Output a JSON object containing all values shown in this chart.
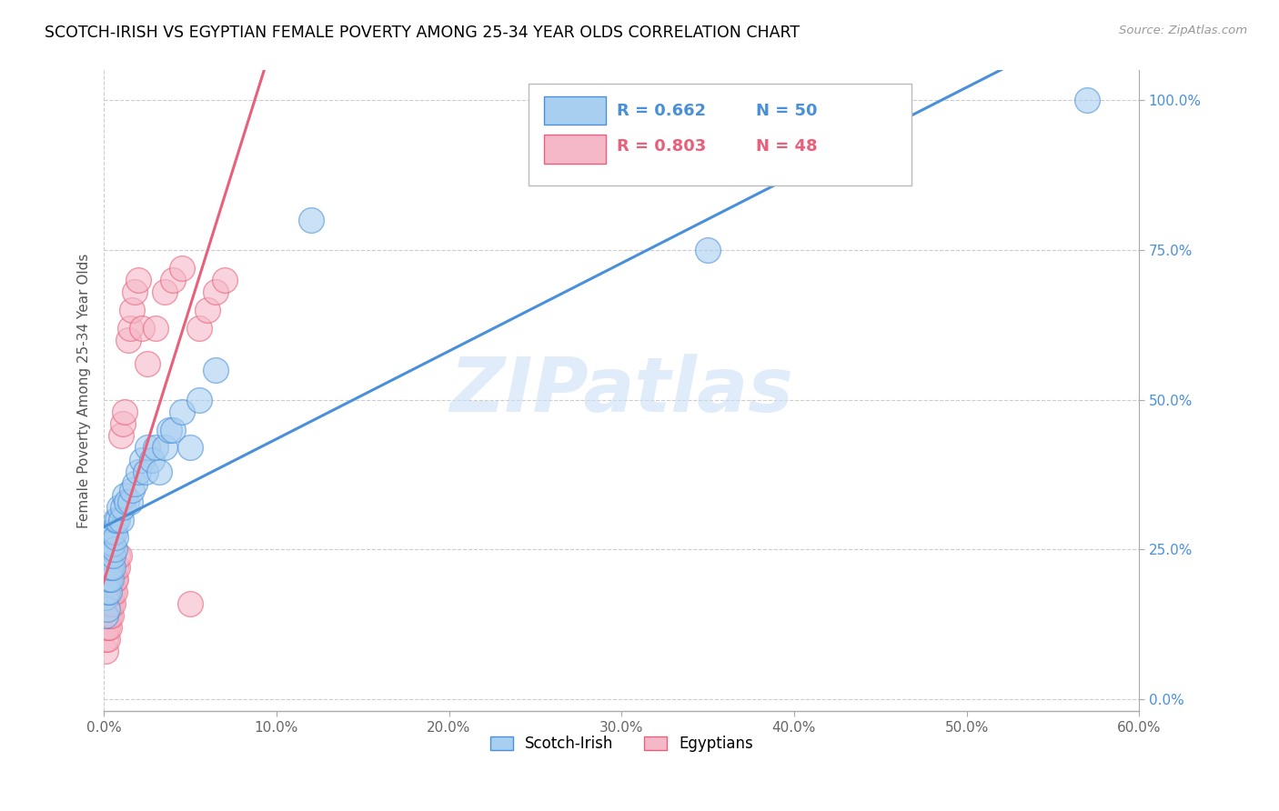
{
  "title": "SCOTCH-IRISH VS EGYPTIAN FEMALE POVERTY AMONG 25-34 YEAR OLDS CORRELATION CHART",
  "source": "Source: ZipAtlas.com",
  "ylabel": "Female Poverty Among 25-34 Year Olds",
  "xaxis_ticks": [
    "0.0%",
    "",
    "",
    "",
    "",
    "",
    "",
    "",
    "",
    "",
    "",
    "",
    "10.0%",
    "",
    "",
    "",
    "",
    "",
    "",
    "",
    "",
    "",
    "",
    "",
    "20.0%",
    "",
    "",
    "",
    "",
    "",
    "",
    "",
    "",
    "",
    "",
    "",
    "30.0%",
    "",
    "",
    "",
    "",
    "",
    "",
    "",
    "",
    "",
    "",
    "",
    "40.0%",
    "",
    "",
    "",
    "",
    "",
    "",
    "",
    "",
    "",
    "",
    "",
    "50.0%",
    "",
    "",
    "",
    "",
    "",
    "",
    "",
    "",
    "",
    "",
    "",
    "60.0%"
  ],
  "xaxis_tick_vals_show": [
    0.0,
    0.1,
    0.2,
    0.3,
    0.4,
    0.5,
    0.6
  ],
  "xaxis_labels_show": [
    "0.0%",
    "10.0%",
    "20.0%",
    "30.0%",
    "40.0%",
    "50.0%",
    "60.0%"
  ],
  "yaxis_ticks_right": [
    "0.0%",
    "25.0%",
    "50.0%",
    "75.0%",
    "100.0%"
  ],
  "yaxis_tick_vals": [
    0.0,
    0.25,
    0.5,
    0.75,
    1.0
  ],
  "xlim": [
    0.0,
    0.6
  ],
  "ylim": [
    -0.02,
    1.05
  ],
  "scotch_irish_color": "#a8cef0",
  "egyptian_color": "#f5b8c8",
  "scotch_irish_line_color": "#4a90d9",
  "egyptian_line_color": "#e8607a",
  "watermark": "ZIPatlas",
  "scotch_irish_x": [
    0.001,
    0.001,
    0.001,
    0.002,
    0.002,
    0.002,
    0.002,
    0.003,
    0.003,
    0.003,
    0.003,
    0.003,
    0.004,
    0.004,
    0.004,
    0.004,
    0.005,
    0.005,
    0.005,
    0.005,
    0.006,
    0.006,
    0.007,
    0.007,
    0.008,
    0.009,
    0.01,
    0.011,
    0.012,
    0.013,
    0.015,
    0.016,
    0.018,
    0.02,
    0.022,
    0.024,
    0.025,
    0.028,
    0.03,
    0.032,
    0.035,
    0.038,
    0.04,
    0.045,
    0.05,
    0.055,
    0.065,
    0.12,
    0.35,
    0.57
  ],
  "scotch_irish_y": [
    0.14,
    0.17,
    0.2,
    0.15,
    0.18,
    0.2,
    0.22,
    0.18,
    0.2,
    0.22,
    0.24,
    0.26,
    0.2,
    0.22,
    0.25,
    0.28,
    0.22,
    0.24,
    0.26,
    0.28,
    0.25,
    0.28,
    0.27,
    0.3,
    0.3,
    0.32,
    0.3,
    0.32,
    0.34,
    0.33,
    0.33,
    0.35,
    0.36,
    0.38,
    0.4,
    0.38,
    0.42,
    0.4,
    0.42,
    0.38,
    0.42,
    0.45,
    0.45,
    0.48,
    0.42,
    0.5,
    0.55,
    0.8,
    0.75,
    1.0
  ],
  "egyptian_x": [
    0.001,
    0.001,
    0.001,
    0.001,
    0.001,
    0.001,
    0.001,
    0.002,
    0.002,
    0.002,
    0.002,
    0.002,
    0.003,
    0.003,
    0.003,
    0.003,
    0.004,
    0.004,
    0.004,
    0.005,
    0.005,
    0.005,
    0.006,
    0.006,
    0.007,
    0.007,
    0.008,
    0.008,
    0.009,
    0.01,
    0.011,
    0.012,
    0.014,
    0.015,
    0.016,
    0.018,
    0.02,
    0.022,
    0.025,
    0.03,
    0.035,
    0.04,
    0.045,
    0.05,
    0.055,
    0.06,
    0.065,
    0.07
  ],
  "egyptian_y": [
    0.08,
    0.1,
    0.12,
    0.14,
    0.14,
    0.16,
    0.18,
    0.1,
    0.12,
    0.14,
    0.16,
    0.18,
    0.12,
    0.14,
    0.16,
    0.18,
    0.14,
    0.16,
    0.18,
    0.16,
    0.18,
    0.2,
    0.18,
    0.2,
    0.2,
    0.22,
    0.22,
    0.24,
    0.24,
    0.44,
    0.46,
    0.48,
    0.6,
    0.62,
    0.65,
    0.68,
    0.7,
    0.62,
    0.56,
    0.62,
    0.68,
    0.7,
    0.72,
    0.16,
    0.62,
    0.65,
    0.68,
    0.7
  ],
  "eg_line_x_start": -0.002,
  "eg_line_x_end": 0.1,
  "si_line_x_start": 0.0,
  "si_line_x_end": 0.6
}
